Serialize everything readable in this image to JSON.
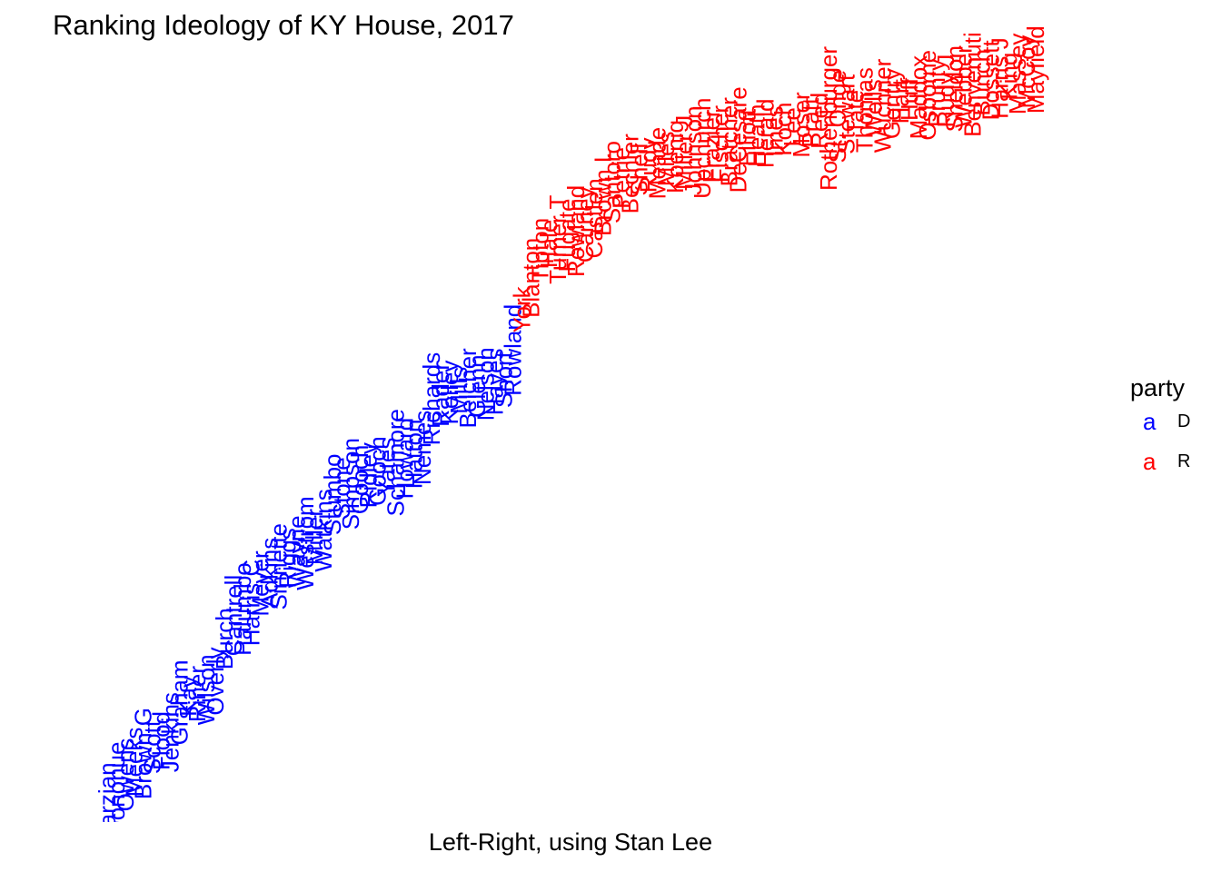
{
  "title": "Ranking Ideology of KY House, 2017",
  "xlabel": "Left-Right, using Stan Lee",
  "legend": {
    "title": "party",
    "key_glyph": "a",
    "items": [
      {
        "label": "D",
        "color": "#0000FF"
      },
      {
        "label": "R",
        "color": "#FF0000"
      }
    ]
  },
  "chart_data": {
    "type": "scatter",
    "title": "Ranking Ideology of KY House, 2017",
    "xlabel": "Left-Right, using Stan Lee",
    "ylabel": "",
    "axes_visible": false,
    "grid": false,
    "legend_placement": "right",
    "label_rotation": "vertical",
    "series": [
      {
        "name": "D",
        "color": "#0000FF",
        "labels": [
          "Marzian",
          "Donohue",
          "Owens",
          "Meeks",
          "Brown G",
          "Scott",
          "Flood",
          "Jenkins",
          "Graham",
          "Kay",
          "Riner",
          "Wilson",
          "Overly",
          "Burch",
          "Cantrell",
          "Palumbo",
          "Harris C",
          "Meyer",
          "Adkins",
          "Sinnette",
          "Riggs",
          "Wayne",
          "Westrom",
          "Miller",
          "Watkins",
          "Stumbo",
          "Stone",
          "Simpson",
          "Gooch",
          "Ridley",
          "Gooch",
          "Yates",
          "Schamore",
          "Howard",
          "Hatton",
          "Nemes",
          "Richards",
          "Rader",
          "Kelley",
          "Mills",
          "Belcher",
          "Glenn",
          "Nelson",
          "Hayes",
          "Short",
          "Rowland"
        ],
        "x": [
          1,
          2,
          3,
          4,
          5,
          6,
          7,
          8,
          9,
          10,
          11,
          12,
          13,
          14,
          15,
          16,
          17,
          18,
          19,
          20,
          21,
          22,
          23,
          24,
          25,
          26,
          27,
          28,
          29,
          30,
          31,
          32,
          33,
          34,
          35,
          36,
          37,
          38,
          39,
          40,
          41,
          42,
          43,
          44,
          45,
          46
        ],
        "y": [
          4,
          11,
          18,
          24,
          28,
          31,
          34,
          38,
          52,
          55,
          56,
          58,
          62,
          82,
          93,
          96,
          99,
          108,
          113,
          116,
          120,
          123,
          127,
          130,
          133,
          150,
          153,
          155,
          157,
          159,
          161,
          163,
          165,
          167,
          169,
          172,
          195,
          197,
          198,
          199,
          200,
          201,
          202,
          203,
          204,
          218
        ]
      },
      {
        "name": "R",
        "color": "#FF0000",
        "labels": [
          "York",
          "Blanton",
          "Tipton",
          "Hale",
          "Turner T",
          "Fugate",
          "Rowland",
          "Carney",
          "Castlen",
          "Brown L",
          "Santoro",
          "Petrie",
          "Bechler",
          "Shell",
          "Rudy",
          "Meade",
          "Miles",
          "Koenig",
          "Miller J",
          "Johnson",
          "Upchurch",
          "Frazier",
          "Fischer",
          "Bratcher",
          "DeCesare",
          "Elliott",
          "Heath",
          "Herald",
          "Imes",
          "Koch",
          "Lee",
          "Moser",
          "Pratt",
          "Reed",
          "Rothenburger",
          "St. Onge",
          "Stewart",
          "Tate",
          "Thomas",
          "Wells",
          "Wuchner",
          "Gentry",
          "Hart",
          "Huff",
          "Maddox",
          "Osborne",
          "Prunty",
          "Rudy J",
          "Sheldon",
          "Webber",
          "Benvenuti",
          "Bunch",
          "Dossett",
          "Harris J",
          "King",
          "Massey",
          "McCoy",
          "Mayfield"
        ],
        "x": [
          47,
          48,
          49,
          50,
          51,
          52,
          53,
          54,
          55,
          56,
          57,
          58,
          59,
          60,
          61,
          62,
          63,
          64,
          65,
          66,
          67,
          68,
          69,
          70,
          71,
          72,
          73,
          74,
          75,
          76,
          77,
          78,
          79,
          80,
          81,
          82,
          83,
          84,
          85,
          86,
          87,
          88,
          89,
          90,
          91,
          92,
          93,
          94,
          95,
          96,
          97,
          98,
          99,
          100,
          101,
          102,
          103,
          104
        ],
        "y": [
          237,
          252,
          265,
          268,
          270,
          272,
          274,
          277,
          280,
          292,
          297,
          299,
          301,
          303,
          305,
          306,
          308,
          309,
          311,
          312,
          313,
          314,
          315,
          316,
          317,
          318,
          319,
          320,
          321,
          322,
          323,
          324,
          325,
          326,
          327,
          328,
          329,
          330,
          331,
          332,
          333,
          334,
          335,
          336,
          337,
          338,
          339,
          340,
          341,
          342,
          343,
          344,
          345,
          346,
          347,
          348,
          349,
          350
        ]
      }
    ],
    "xlim": [
      0,
      105
    ],
    "ylim": [
      0,
      355
    ]
  }
}
